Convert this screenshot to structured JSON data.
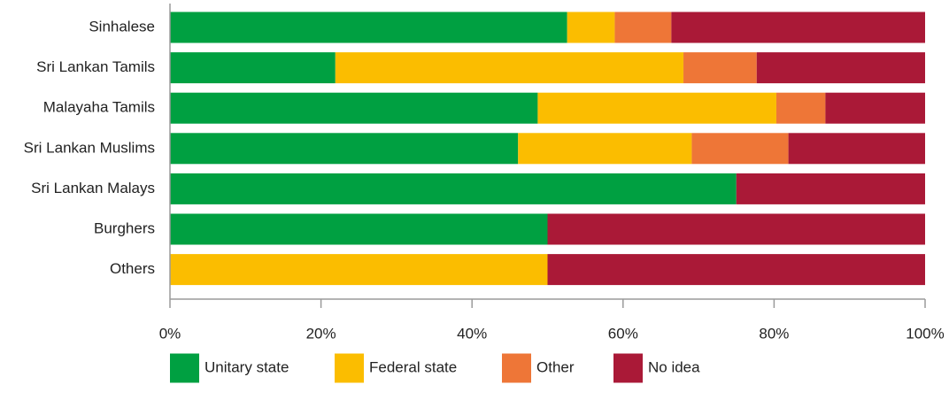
{
  "chart_data": {
    "type": "bar",
    "orientation": "horizontal",
    "stacked": "percent",
    "categories": [
      "Sinhalese",
      "Sri Lankan Tamils",
      "Malayaha Tamils",
      "Sri Lankan Muslims",
      "Sri Lankan Malays",
      "Burghers",
      "Others"
    ],
    "series": [
      {
        "name": "Unitary state",
        "color": "#00a041",
        "values": [
          52.6,
          21.9,
          48.7,
          46.1,
          75.0,
          50.0,
          0.0
        ]
      },
      {
        "name": "Federal state",
        "color": "#fbbd00",
        "values": [
          6.3,
          46.1,
          31.6,
          23.0,
          0.0,
          0.0,
          50.0
        ]
      },
      {
        "name": "Other",
        "color": "#ee7637",
        "values": [
          7.5,
          9.7,
          6.5,
          12.8,
          0.0,
          0.0,
          0.0
        ]
      },
      {
        "name": "No idea",
        "color": "#aa1937",
        "values": [
          33.6,
          22.3,
          13.2,
          18.1,
          25.0,
          50.0,
          50.0
        ]
      }
    ],
    "xlim": [
      0,
      100
    ],
    "xticks": [
      "0%",
      "20%",
      "40%",
      "60%",
      "80%",
      "100%"
    ],
    "xtick_values": [
      0,
      20,
      40,
      60,
      80,
      100
    ],
    "grid": false,
    "legend_position": "bottom"
  }
}
